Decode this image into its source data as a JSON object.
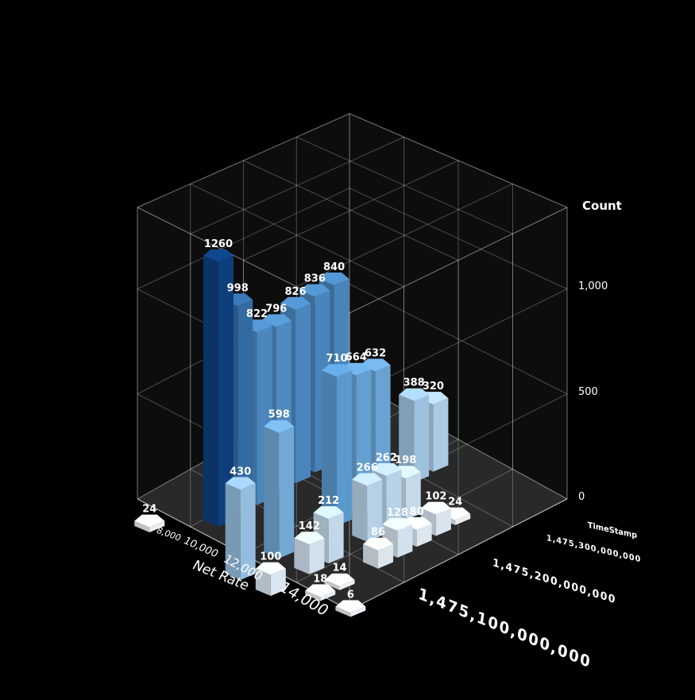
{
  "chart_data": {
    "type": "3d-bar",
    "zlabel": "Count",
    "zticks": [
      "0",
      "500",
      "1,000"
    ],
    "zlim": [
      0,
      1250
    ],
    "xlabel": "Net Rate",
    "xticks": [
      "8,000",
      "10,000",
      "12,000",
      "14,000"
    ],
    "ylabel": "TimeStamp",
    "yticks": [
      "1,475,100,000,000",
      "1,475,200,000,000",
      "1,475,300,000,000"
    ],
    "colors": {
      "low": "#eef1f4",
      "mid": "#5d9ccf",
      "high": "#0e3f7c"
    },
    "bars": [
      {
        "label": "1260",
        "value": 1260,
        "net_rate": 9000,
        "time_rank": 3
      },
      {
        "label": "998",
        "value": 998,
        "net_rate": 9000,
        "time_rank": 4
      },
      {
        "label": "822",
        "value": 822,
        "net_rate": 9000,
        "time_rank": 5
      },
      {
        "label": "796",
        "value": 796,
        "net_rate": 9000,
        "time_rank": 6
      },
      {
        "label": "826",
        "value": 826,
        "net_rate": 9000,
        "time_rank": 7
      },
      {
        "label": "836",
        "value": 836,
        "net_rate": 9000,
        "time_rank": 8
      },
      {
        "label": "840",
        "value": 840,
        "net_rate": 9000,
        "time_rank": 9
      },
      {
        "label": "598",
        "value": 598,
        "net_rate": 11000,
        "time_rank": 3
      },
      {
        "label": "710",
        "value": 710,
        "net_rate": 11000,
        "time_rank": 6
      },
      {
        "label": "664",
        "value": 664,
        "net_rate": 11000,
        "time_rank": 7
      },
      {
        "label": "632",
        "value": 632,
        "net_rate": 11000,
        "time_rank": 8
      },
      {
        "label": "430",
        "value": 430,
        "net_rate": 11000,
        "time_rank": 1
      },
      {
        "label": "388",
        "value": 388,
        "net_rate": 11000,
        "time_rank": 10
      },
      {
        "label": "320",
        "value": 320,
        "net_rate": 11000,
        "time_rank": 11
      },
      {
        "label": "266",
        "value": 266,
        "net_rate": 12000,
        "time_rank": 6
      },
      {
        "label": "262",
        "value": 262,
        "net_rate": 12000,
        "time_rank": 7
      },
      {
        "label": "198",
        "value": 198,
        "net_rate": 12000,
        "time_rank": 8
      },
      {
        "label": "212",
        "value": 212,
        "net_rate": 12000,
        "time_rank": 4
      },
      {
        "label": "142",
        "value": 142,
        "net_rate": 12000,
        "time_rank": 3
      },
      {
        "label": "128",
        "value": 128,
        "net_rate": 13000,
        "time_rank": 6
      },
      {
        "label": "80",
        "value": 80,
        "net_rate": 13000,
        "time_rank": 7
      },
      {
        "label": "102",
        "value": 102,
        "net_rate": 13000,
        "time_rank": 8
      },
      {
        "label": "24",
        "value": 24,
        "net_rate": 13000,
        "time_rank": 9
      },
      {
        "label": "86",
        "value": 86,
        "net_rate": 13000,
        "time_rank": 5
      },
      {
        "label": "100",
        "value": 100,
        "net_rate": 12000,
        "time_rank": 1
      },
      {
        "label": "24",
        "value": 24,
        "net_rate": 8000,
        "time_rank": 1
      },
      {
        "label": "18",
        "value": 18,
        "net_rate": 13000,
        "time_rank": 2
      },
      {
        "label": "14",
        "value": 14,
        "net_rate": 13000,
        "time_rank": 3
      },
      {
        "label": "6",
        "value": 6,
        "net_rate": 14000,
        "time_rank": 2
      }
    ]
  }
}
